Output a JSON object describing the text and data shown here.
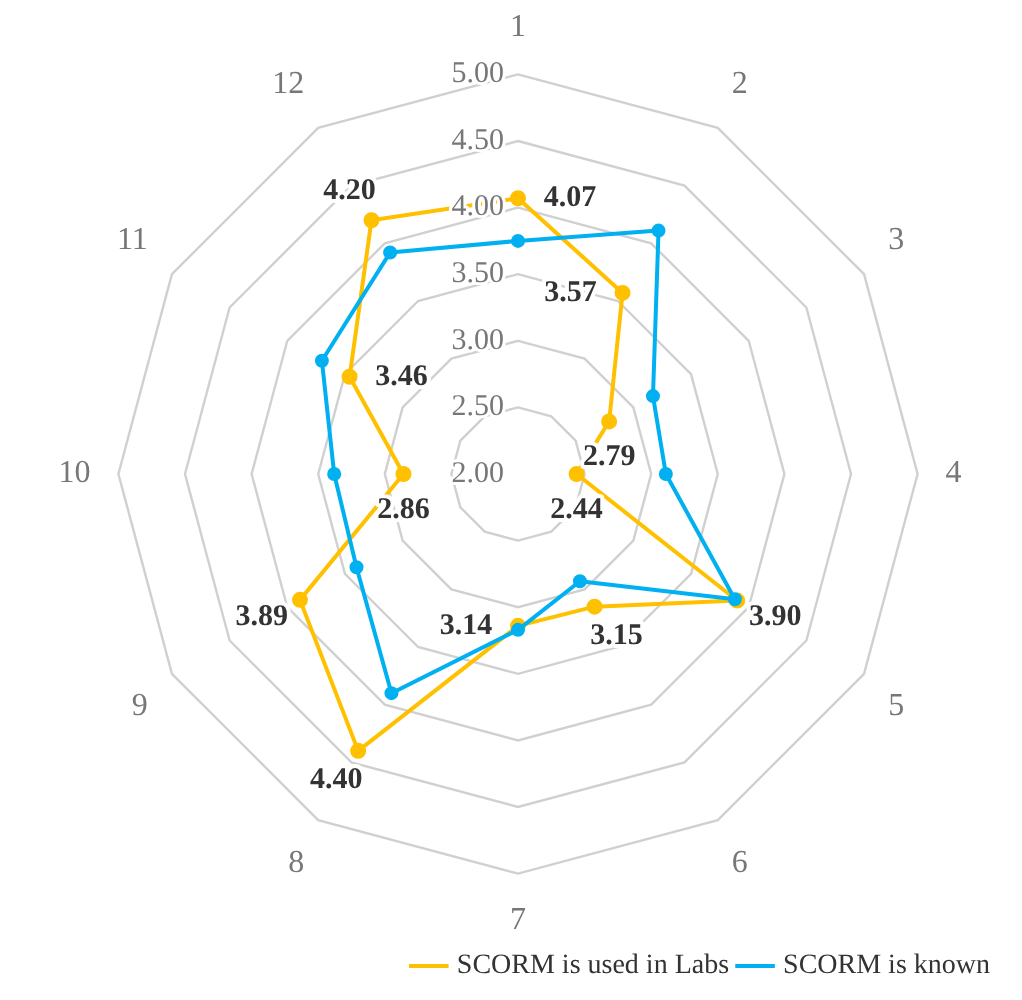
{
  "chart_data": {
    "type": "radar",
    "categories": [
      "1",
      "2",
      "3",
      "4",
      "5",
      "6",
      "7",
      "8",
      "9",
      "10",
      "11",
      "12"
    ],
    "ylim": [
      2,
      5
    ],
    "yticks": [
      {
        "value": 2,
        "label": "2.00"
      },
      {
        "value": 2.5,
        "label": "2.50"
      },
      {
        "value": 3,
        "label": "3.00"
      },
      {
        "value": 3.5,
        "label": "3.50"
      },
      {
        "value": 4,
        "label": "4.00"
      },
      {
        "value": 4.5,
        "label": "4.50"
      },
      {
        "value": 5,
        "label": "5.00"
      }
    ],
    "grid": true,
    "legend": "bottom right",
    "marker": "circle",
    "series": [
      {
        "name": "SCORM is used in Labs",
        "color": "#ffc000",
        "values": [
          4.07,
          3.57,
          2.79,
          2.44,
          3.9,
          3.15,
          3.14,
          4.4,
          3.89,
          2.86,
          3.46,
          4.2
        ],
        "value_labels": [
          "4.07",
          "3.57",
          "2.79",
          "2.44",
          "3.90",
          "3.15",
          "3.14",
          "4.40",
          "3.89",
          "2.86",
          "3.46",
          "4.20"
        ]
      },
      {
        "name": "SCORM is known",
        "color": "#00b0f0",
        "values": [
          3.75,
          4.11,
          3.17,
          3.11,
          3.88,
          2.93,
          3.17,
          3.9,
          3.4,
          3.38,
          3.7,
          3.92
        ]
      }
    ]
  }
}
